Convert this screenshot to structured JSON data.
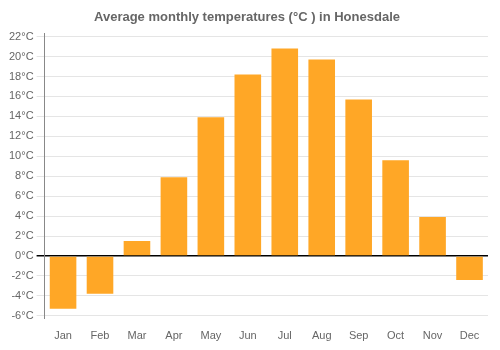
{
  "chart_data": {
    "type": "bar",
    "title": "Average monthly temperatures (°C ) in Honesdale",
    "categories": [
      "Jan",
      "Feb",
      "Mar",
      "Apr",
      "May",
      "Jun",
      "Jul",
      "Aug",
      "Sep",
      "Oct",
      "Nov",
      "Dec"
    ],
    "values": [
      -5.3,
      -3.8,
      1.5,
      7.9,
      13.9,
      18.2,
      20.8,
      19.7,
      15.7,
      9.6,
      3.9,
      -2.4
    ],
    "color": "#FFA726",
    "ylim": [
      -6.3,
      22.3
    ],
    "yticks": [
      {
        "value": -6,
        "label": "-6°C"
      },
      {
        "value": -4,
        "label": "-4°C"
      },
      {
        "value": -2,
        "label": "-2°C"
      },
      {
        "value": 0,
        "label": "0°C"
      },
      {
        "value": 2,
        "label": "2°C"
      },
      {
        "value": 4,
        "label": "4°C"
      },
      {
        "value": 6,
        "label": "6°C"
      },
      {
        "value": 8,
        "label": "8°C"
      },
      {
        "value": 10,
        "label": "10°C"
      },
      {
        "value": 12,
        "label": "12°C"
      },
      {
        "value": 14,
        "label": "14°C"
      },
      {
        "value": 16,
        "label": "16°C"
      },
      {
        "value": 18,
        "label": "18°C"
      },
      {
        "value": 20,
        "label": "20°C"
      },
      {
        "value": 22,
        "label": "22°C"
      }
    ],
    "grid": true
  }
}
